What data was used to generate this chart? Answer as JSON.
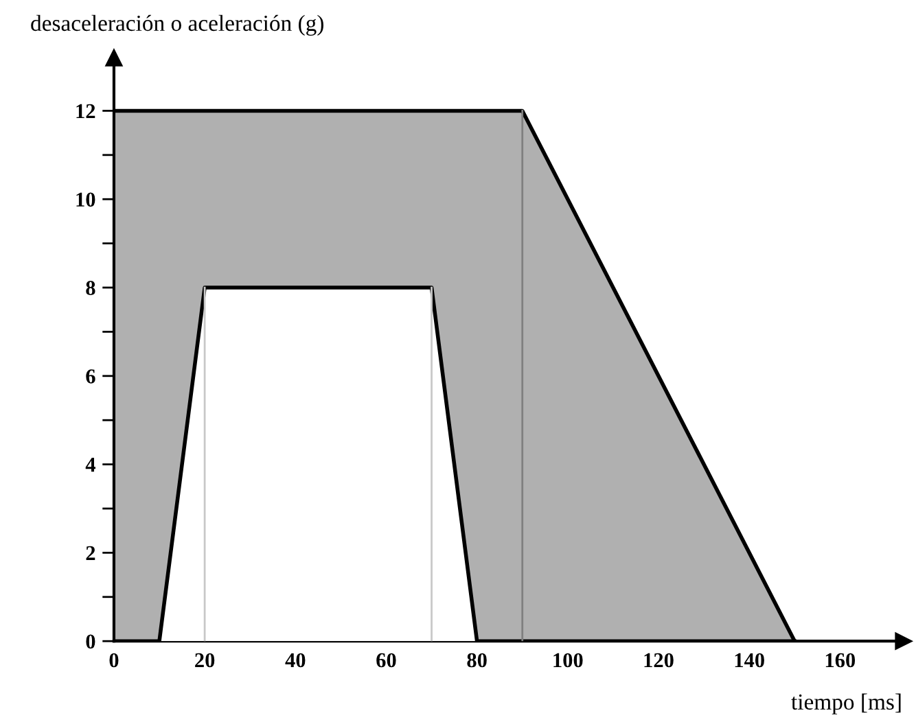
{
  "chart_data": {
    "type": "area",
    "ylabel": "desaceleración o aceleración (g)",
    "xlabel": "tiempo [ms]",
    "series": [
      {
        "color": "#b0b0b0",
        "x": [
          0,
          90,
          150
        ],
        "values": [
          12,
          12,
          0
        ]
      },
      {
        "color": "#ffffff",
        "x": [
          0,
          10,
          20,
          70,
          80,
          150
        ],
        "values": [
          0,
          0,
          8,
          8,
          0,
          0
        ]
      }
    ],
    "ref_lines": [
      {
        "axis": "x",
        "value": 20,
        "color": "#c8c8c8"
      },
      {
        "axis": "x",
        "value": 70,
        "color": "#c8c8c8"
      },
      {
        "axis": "x",
        "value": 90,
        "color": "#808080"
      }
    ],
    "xlim": [
      0,
      174
    ],
    "ylim": [
      0,
      13.2
    ],
    "xticks": [
      0,
      20,
      40,
      60,
      80,
      100,
      120,
      140,
      160
    ],
    "yticks": [
      0,
      {
        "value": 1,
        "label": null
      },
      2,
      {
        "value": 3,
        "label": null
      },
      4,
      {
        "value": 5,
        "label": null
      },
      6,
      {
        "value": 7,
        "label": null
      },
      8,
      {
        "value": 9,
        "label": null
      },
      10,
      {
        "value": 11,
        "label": null
      },
      12
    ],
    "grid": false,
    "legend": false
  }
}
